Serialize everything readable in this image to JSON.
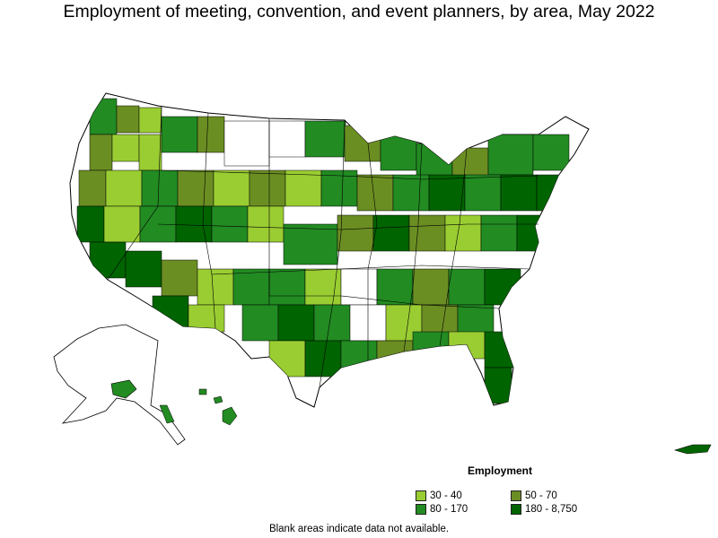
{
  "title": "Employment of meeting, convention, and event planners, by area, May 2022",
  "legend": {
    "title": "Employment",
    "items": [
      {
        "label": "30 - 40",
        "color": "#9acd32"
      },
      {
        "label": "50 - 70",
        "color": "#6b8e23"
      },
      {
        "label": "80 - 170",
        "color": "#228b22"
      },
      {
        "label": "180 - 8,750",
        "color": "#006400"
      }
    ]
  },
  "footnote": "Blank areas indicate data not available.",
  "colors": {
    "outline": "#000000",
    "no_data": "#ffffff"
  }
}
